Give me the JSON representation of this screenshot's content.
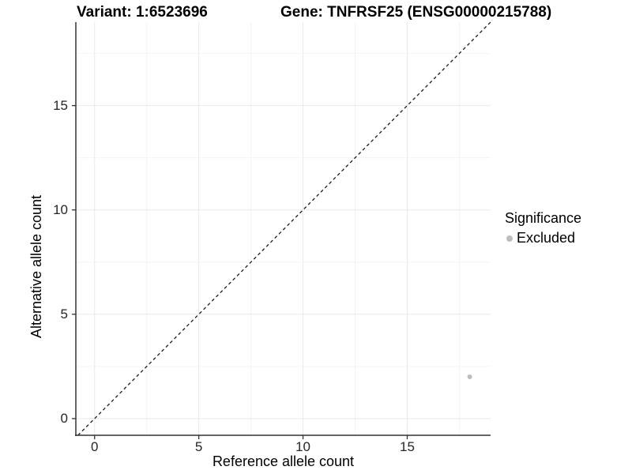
{
  "chart_data": {
    "type": "scatter",
    "title_left": "Variant: 1:6523696",
    "title_right": "Gene: TNFRSF25 (ENSG00000215788)",
    "xlabel": "Reference allele count",
    "ylabel": "Alternative allele count",
    "xlim": [
      -0.9,
      19.0
    ],
    "ylim": [
      -0.8,
      19.0
    ],
    "xticks": [
      0,
      5,
      10,
      15
    ],
    "yticks": [
      0,
      5,
      10,
      15
    ],
    "grid_x": [
      0,
      2.5,
      5,
      7.5,
      10,
      12.5,
      15,
      17.5
    ],
    "grid_y": [
      0,
      2.5,
      5,
      7.5,
      10,
      12.5,
      15,
      17.5
    ],
    "grid": "on",
    "legend_position": "right",
    "series": [
      {
        "name": "Excluded",
        "color": "#bebebe",
        "points": [
          {
            "x": 18,
            "y": 2
          }
        ]
      }
    ],
    "reference_line": {
      "type": "identity",
      "style": "dashed",
      "color": "#1a1a1a"
    }
  },
  "legend": {
    "title": "Significance",
    "entries": [
      {
        "label": "Excluded",
        "color": "#bebebe"
      }
    ]
  },
  "colors": {
    "point": "#bebebe",
    "grid_major": "#e9e9e9",
    "grid_minor": "#f4f4f4",
    "axis": "#333333",
    "tick_text": "#262626",
    "dashed_line": "#1a1a1a",
    "background": "#ffffff"
  }
}
